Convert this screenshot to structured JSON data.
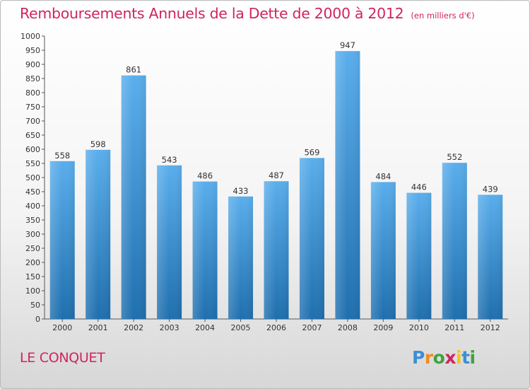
{
  "title": "Remboursements Annuels de la Dette de 2000 à 2012",
  "unit": "(en milliers d'€)",
  "place": "LE CONQUET",
  "brand": {
    "letters": [
      "P",
      "r",
      "o",
      "x",
      "i",
      "t",
      "i"
    ],
    "colors": [
      "#3b8fd6",
      "#f08a1c",
      "#3fa33b",
      "#d0245e",
      "#f2c511",
      "#3b8fd6",
      "#3fa33b"
    ]
  },
  "colors": {
    "title": "#d0245e",
    "bar_light": "#5aaeec",
    "bar_dark": "#1f6fae"
  },
  "chart_data": {
    "type": "bar",
    "categories": [
      "2000",
      "2001",
      "2002",
      "2003",
      "2004",
      "2005",
      "2006",
      "2007",
      "2008",
      "2009",
      "2010",
      "2011",
      "2012"
    ],
    "values": [
      558,
      598,
      861,
      543,
      486,
      433,
      487,
      569,
      947,
      484,
      446,
      552,
      439
    ],
    "title": "Remboursements Annuels de la Dette de 2000 à 2012",
    "ylim": [
      0,
      1000
    ],
    "yticks": [
      0,
      50,
      100,
      150,
      200,
      250,
      300,
      350,
      400,
      450,
      500,
      550,
      600,
      650,
      700,
      750,
      800,
      850,
      900,
      950,
      1000
    ],
    "grid": false,
    "data_labels": true
  }
}
